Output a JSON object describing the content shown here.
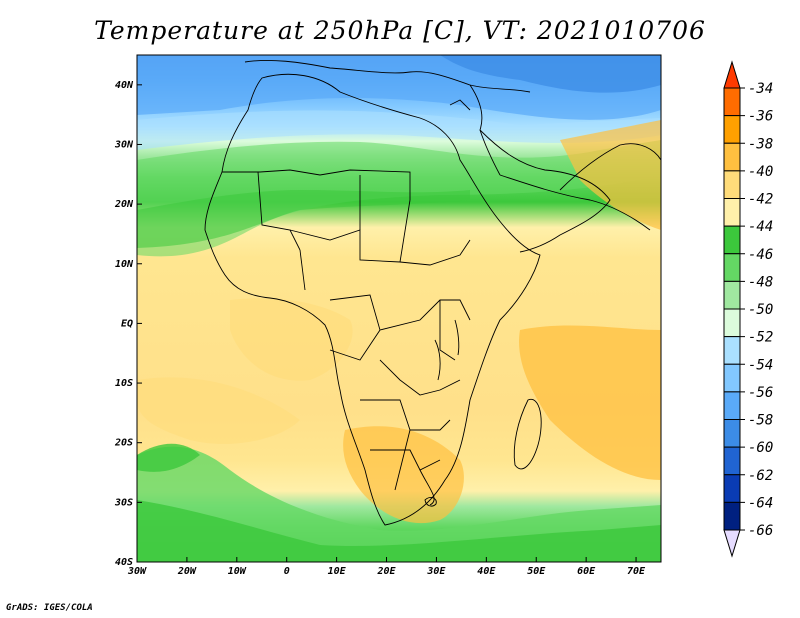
{
  "title": "Temperature at 250hPa [C], VT: 2021010706",
  "footer": "GrADS: IGES/COLA",
  "map": {
    "lon_range": [
      -30,
      75
    ],
    "lat_range": [
      -40,
      45
    ],
    "x_ticks": [
      {
        "value": -30,
        "label": "30W"
      },
      {
        "value": -20,
        "label": "20W"
      },
      {
        "value": -10,
        "label": "10W"
      },
      {
        "value": 0,
        "label": "0"
      },
      {
        "value": 10,
        "label": "10E"
      },
      {
        "value": 20,
        "label": "20E"
      },
      {
        "value": 30,
        "label": "30E"
      },
      {
        "value": 40,
        "label": "40E"
      },
      {
        "value": 50,
        "label": "50E"
      },
      {
        "value": 60,
        "label": "60E"
      },
      {
        "value": 70,
        "label": "70E"
      }
    ],
    "y_ticks": [
      {
        "value": 40,
        "label": "40N"
      },
      {
        "value": 30,
        "label": "30N"
      },
      {
        "value": 20,
        "label": "20N"
      },
      {
        "value": 10,
        "label": "10N"
      },
      {
        "value": 0,
        "label": "EQ"
      },
      {
        "value": -10,
        "label": "10S"
      },
      {
        "value": -20,
        "label": "20S"
      },
      {
        "value": -30,
        "label": "30S"
      },
      {
        "value": -40,
        "label": "40S"
      }
    ]
  },
  "colorbar": {
    "levels": [
      "-34",
      "-36",
      "-38",
      "-40",
      "-42",
      "-44",
      "-46",
      "-48",
      "-50",
      "-52",
      "-54",
      "-56",
      "-58",
      "-60",
      "-62",
      "-64",
      "-66"
    ],
    "colors": [
      "#ff3a00",
      "#ff6c00",
      "#ffa000",
      "#ffc040",
      "#ffdc7a",
      "#fff0aa",
      "#3cc83c",
      "#64d864",
      "#a0e8a0",
      "#dcfcdc",
      "#aae0ff",
      "#82c8ff",
      "#5aaaf8",
      "#3c8ce6",
      "#2064d2",
      "#0a3cb4",
      "#002080",
      "#e6dcff"
    ]
  },
  "icons": {
    "arrow_top": "triangle-up-icon",
    "arrow_bottom": "triangle-down-icon"
  }
}
